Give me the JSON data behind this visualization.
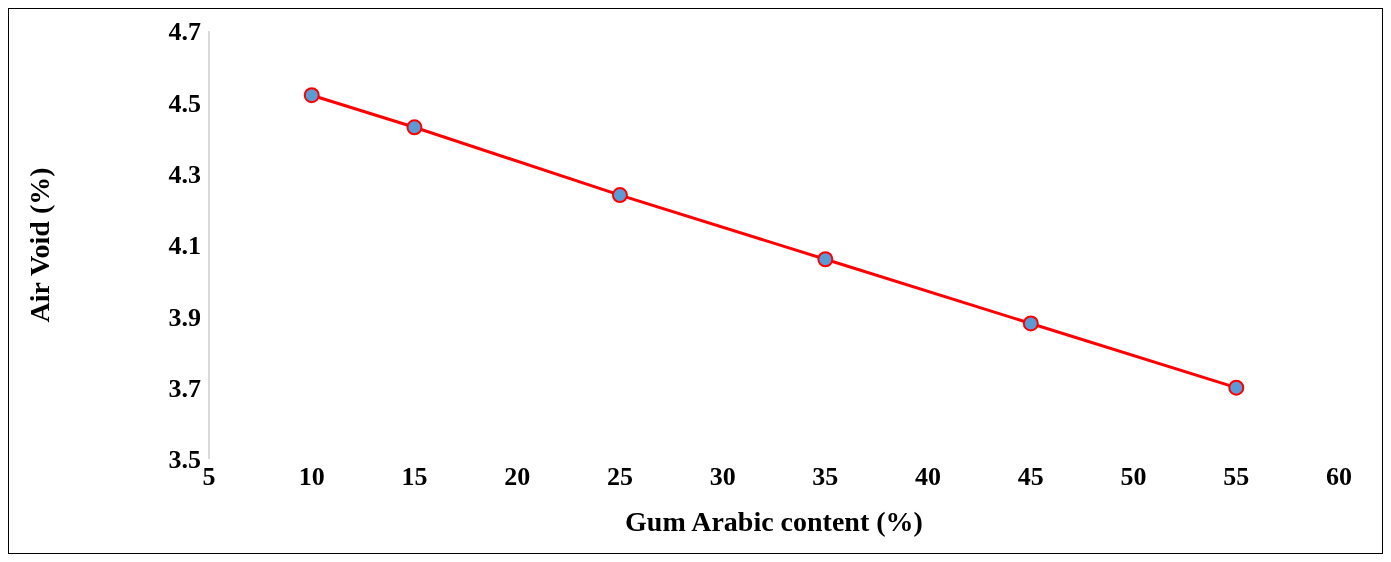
{
  "chart_data": {
    "type": "line",
    "xlabel": "Gum Arabic content (%)",
    "ylabel": "Air Void (%)",
    "x": [
      10,
      15,
      25,
      35,
      45,
      55
    ],
    "series": [
      {
        "color": "#ff0000",
        "values": [
          4.52,
          4.43,
          4.24,
          4.06,
          3.88,
          3.7
        ]
      }
    ],
    "xlim": [
      5,
      60
    ],
    "xticks": [
      5,
      10,
      15,
      20,
      25,
      30,
      35,
      40,
      45,
      50,
      55,
      60
    ],
    "ylim": [
      3.5,
      4.7
    ],
    "yticks": [
      {
        "value": 3.5,
        "label": "3.5"
      },
      {
        "value": 3.7,
        "label": "3.7"
      },
      {
        "value": 3.9,
        "label": "3.9"
      },
      {
        "value": 4.1,
        "label": "4.1"
      },
      {
        "value": 4.3,
        "label": "4.3"
      },
      {
        "value": 4.5,
        "label": "4.5"
      },
      {
        "value": 4.7,
        "label": "4.7"
      }
    ],
    "grid": false,
    "legend": false,
    "marker": "circle",
    "line_style": "solid"
  }
}
